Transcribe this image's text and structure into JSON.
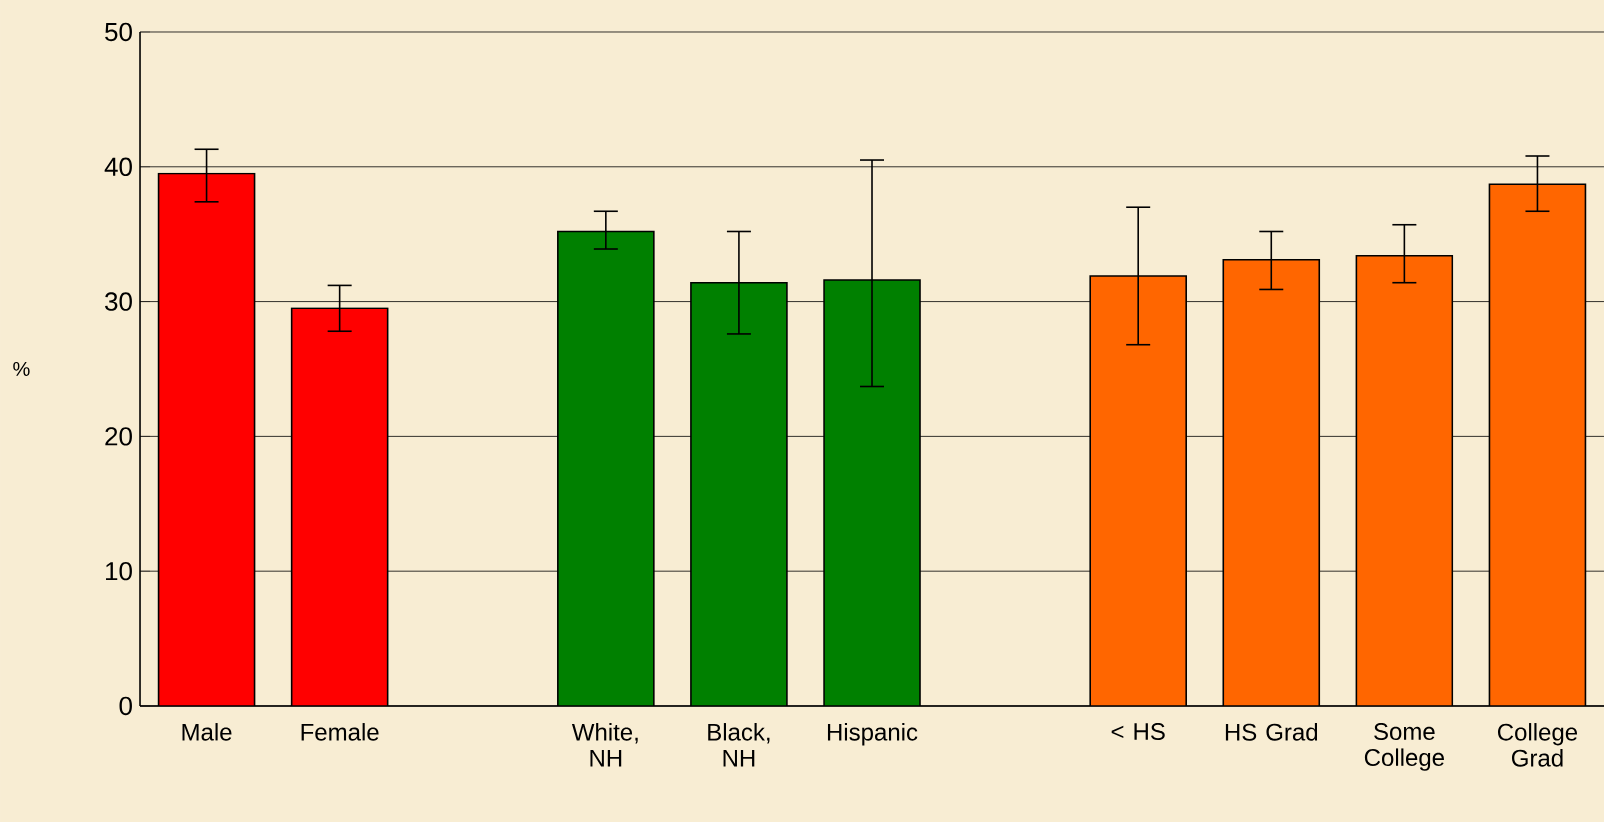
{
  "chart_data": {
    "type": "bar",
    "ylabel": "%",
    "categories": [
      "Male",
      "Female",
      null,
      "White, NH",
      "Black, NH",
      "Hispanic",
      null,
      "< HS",
      "HS Grad",
      "Some College",
      "College Grad"
    ],
    "values": [
      39.5,
      29.5,
      null,
      35.2,
      31.4,
      31.6,
      null,
      31.9,
      33.1,
      33.4,
      38.7
    ],
    "colors": [
      "#ff0000",
      "#ff0000",
      null,
      "#008000",
      "#008000",
      "#008000",
      null,
      "#ff6600",
      "#ff6600",
      "#ff6600",
      "#ff6600"
    ],
    "errors": [
      [
        37.4,
        41.3
      ],
      [
        27.8,
        31.2
      ],
      null,
      [
        33.9,
        36.7
      ],
      [
        27.6,
        35.2
      ],
      [
        23.7,
        40.5
      ],
      null,
      [
        26.8,
        37.0
      ],
      [
        30.9,
        35.2
      ],
      [
        31.4,
        35.7
      ],
      [
        36.7,
        40.8
      ]
    ],
    "ylim": [
      0,
      50
    ],
    "yticks": [
      0,
      10,
      20,
      30,
      40,
      50
    ],
    "grid": "y"
  }
}
